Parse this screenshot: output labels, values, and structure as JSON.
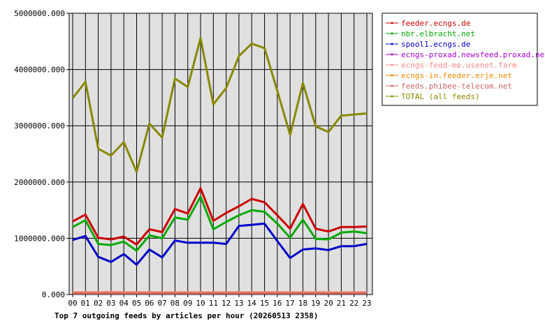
{
  "chart_data": {
    "type": "line",
    "title": "Top 7 outgoing feeds by articles per hour (20260513 2358)",
    "xlabel": "",
    "ylabel": "",
    "categories": [
      "00",
      "01",
      "02",
      "03",
      "04",
      "05",
      "06",
      "07",
      "08",
      "09",
      "10",
      "11",
      "12",
      "13",
      "14",
      "15",
      "16",
      "17",
      "18",
      "19",
      "20",
      "21",
      "22",
      "23"
    ],
    "ylim": [
      0,
      5000000
    ],
    "y_ticks": [
      "0.000",
      "1000000.000",
      "2000000.000",
      "3000000.000",
      "4000000.000",
      "5000000.000"
    ],
    "grid": true,
    "legend_position": "right",
    "series": [
      {
        "name": "feeder.ecngs.de",
        "color": "#cc0000",
        "values": [
          1300000,
          1420000,
          1010000,
          980000,
          1030000,
          890000,
          1160000,
          1110000,
          1520000,
          1440000,
          1890000,
          1310000,
          1450000,
          1570000,
          1700000,
          1640000,
          1410000,
          1170000,
          1610000,
          1170000,
          1120000,
          1200000,
          1200000,
          1210000
        ]
      },
      {
        "name": "nbr.elbracht.net",
        "color": "#00aa00",
        "values": [
          1200000,
          1320000,
          900000,
          880000,
          940000,
          780000,
          1050000,
          1000000,
          1370000,
          1330000,
          1740000,
          1160000,
          1290000,
          1410000,
          1500000,
          1470000,
          1260000,
          1010000,
          1330000,
          990000,
          980000,
          1100000,
          1120000,
          1090000
        ]
      },
      {
        "name": "spool1.ecngs.de",
        "color": "#0000cc",
        "values": [
          970000,
          1040000,
          670000,
          580000,
          720000,
          530000,
          800000,
          660000,
          960000,
          920000,
          920000,
          920000,
          900000,
          1220000,
          1240000,
          1260000,
          950000,
          650000,
          800000,
          820000,
          790000,
          860000,
          860000,
          900000
        ]
      },
      {
        "name": "ecngs-proxad.newsfeed.proxad.net",
        "color": "#aa00cc",
        "values": [
          30000,
          30000,
          30000,
          30000,
          30000,
          30000,
          30000,
          30000,
          30000,
          30000,
          30000,
          30000,
          30000,
          30000,
          30000,
          30000,
          30000,
          30000,
          30000,
          30000,
          30000,
          30000,
          30000,
          30000
        ]
      },
      {
        "name": "ecngs-feed-me.usenet.farm",
        "color": "#ff8888",
        "values": [
          40000,
          40000,
          40000,
          45000,
          42000,
          40000,
          40000,
          38000,
          38000,
          38000,
          38000,
          38000,
          38000,
          40000,
          38000,
          40000,
          42000,
          38000,
          38000,
          38000,
          38000,
          36000,
          40000,
          40000
        ]
      },
      {
        "name": "ecngs-in.feeder.erje.net",
        "color": "#ee8800",
        "values": [
          25000,
          25000,
          25000,
          25000,
          25000,
          25000,
          25000,
          25000,
          25000,
          25000,
          25000,
          25000,
          25000,
          25000,
          25000,
          25000,
          25000,
          25000,
          25000,
          25000,
          25000,
          25000,
          25000,
          25000
        ]
      },
      {
        "name": "feeds.phibee-telecom.net",
        "color": "#cc6666",
        "values": [
          20000,
          20000,
          20000,
          20000,
          20000,
          20000,
          20000,
          20000,
          20000,
          20000,
          20000,
          20000,
          20000,
          20000,
          20000,
          20000,
          20000,
          20000,
          20000,
          20000,
          20000,
          20000,
          20000,
          20000
        ]
      },
      {
        "name": "TOTAL (all feeds)",
        "color": "#888800",
        "values": [
          3490000,
          3780000,
          2590000,
          2470000,
          2710000,
          2180000,
          3040000,
          2790000,
          3840000,
          3690000,
          4560000,
          3380000,
          3670000,
          4240000,
          4460000,
          4380000,
          3620000,
          2840000,
          3760000,
          2990000,
          2890000,
          3180000,
          3200000,
          3220000
        ]
      }
    ]
  }
}
